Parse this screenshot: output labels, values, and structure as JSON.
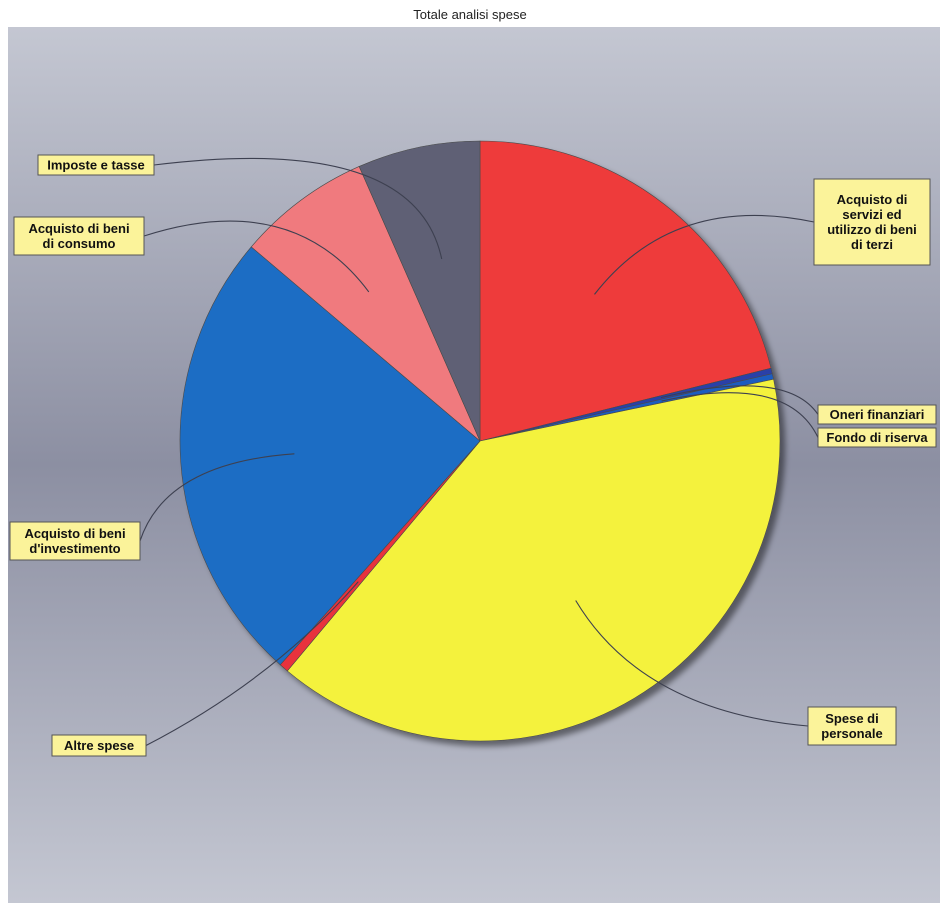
{
  "chart_data": {
    "type": "pie",
    "title": "Totale analisi spese",
    "start_angle_deg": 0,
    "direction": "clockwise",
    "legend": "none",
    "slices": [
      {
        "label": "Acquisto di servizi ed utilizzo di beni di terzi",
        "label_lines": [
          "Acquisto di",
          "servizi ed",
          "utilizzo di beni",
          "di terzi"
        ],
        "value": 21.1,
        "color": "#ee3a3a"
      },
      {
        "label": "Oneri finanziari",
        "label_lines": [
          "Oneri finanziari"
        ],
        "value": 0.3,
        "color": "#2a3fa8"
      },
      {
        "label": "Fondo di riserva",
        "label_lines": [
          "Fondo di riserva"
        ],
        "value": 0.3,
        "color": "#1e5cc0"
      },
      {
        "label": "Spese di personale",
        "label_lines": [
          "Spese di",
          "personale"
        ],
        "value": 39.4,
        "color": "#f4f23c"
      },
      {
        "label": "Altre spese",
        "label_lines": [
          "Altre spese"
        ],
        "value": 0.5,
        "color": "#e8323c"
      },
      {
        "label": "Acquisto di beni d'investimento",
        "label_lines": [
          "Acquisto di beni",
          "d'investimento"
        ],
        "value": 24.6,
        "color": "#1f6dc4"
      },
      {
        "label": "Acquisto di beni di consumo",
        "label_lines": [
          "Acquisto di beni",
          "di consumo"
        ],
        "value": 7.2,
        "color": "#f07a7e"
      },
      {
        "label": "Imposte e tasse",
        "label_lines": [
          "Imposte e tasse"
        ],
        "value": 6.6,
        "color": "#5e6174"
      }
    ]
  },
  "colors": {
    "background_light": "#c4c7d2",
    "background_dark": "#8c8fa2",
    "label_fill": "#fbf39a",
    "label_border": "#555555",
    "leader_line": "#3d4050"
  }
}
